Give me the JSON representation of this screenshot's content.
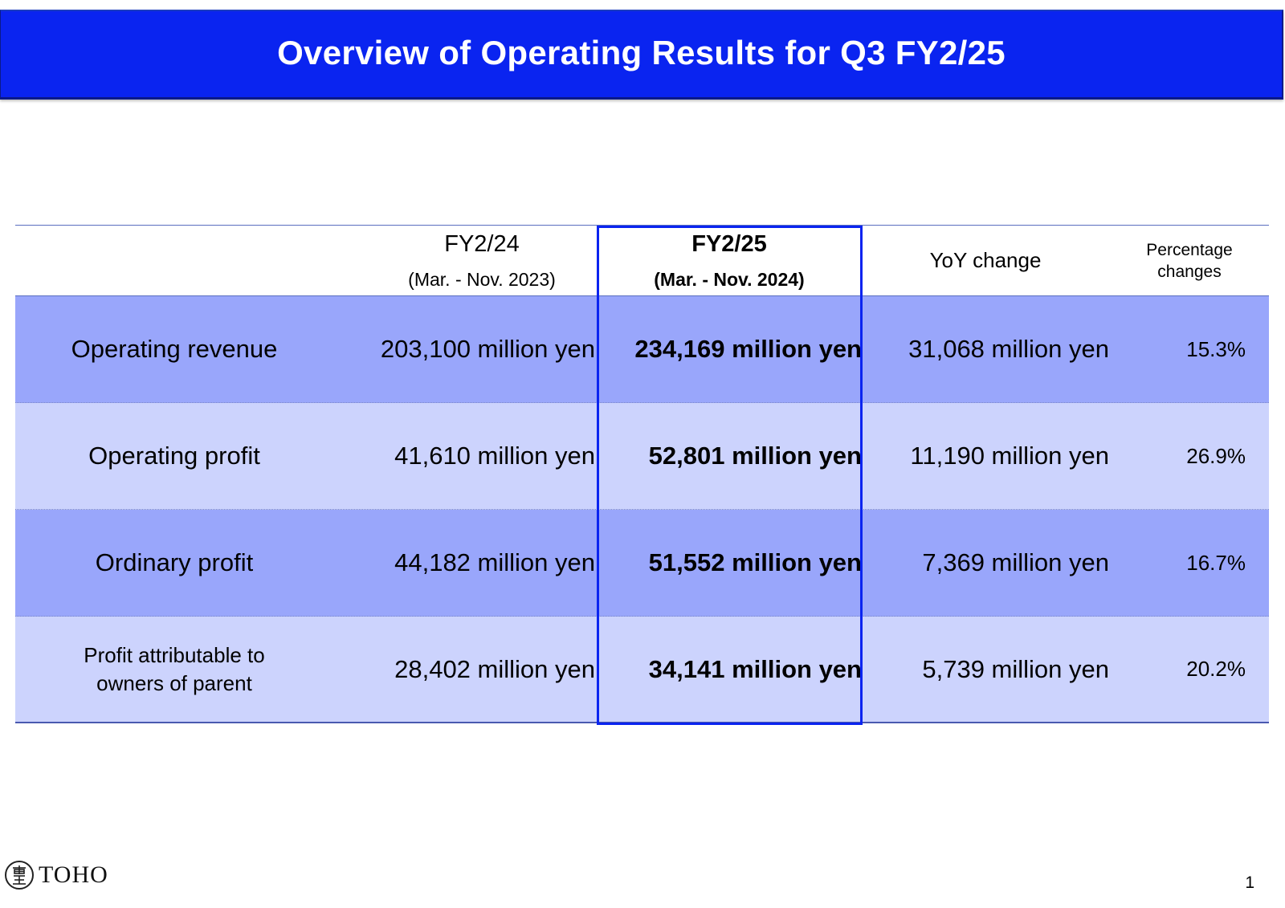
{
  "title": "Overview of Operating Results for Q3 FY2/25",
  "header": {
    "col1_main": "FY2/24",
    "col1_sub": "(Mar. - Nov. 2023)",
    "col2_main": "FY2/25",
    "col2_sub": "(Mar. - Nov. 2024)",
    "col3": "YoY change",
    "col4_line1": "Percentage",
    "col4_line2": "changes"
  },
  "rows": [
    {
      "label": "Operating revenue",
      "fy24": "203,100 million yen",
      "fy25": "234,169 million yen",
      "yoy": "31,068 million yen",
      "pct": "15.3%"
    },
    {
      "label": "Operating profit",
      "fy24": "41,610 million yen",
      "fy25": "52,801 million yen",
      "yoy": "11,190 million yen",
      "pct": "26.9%"
    },
    {
      "label": "Ordinary profit",
      "fy24": "44,182 million yen",
      "fy25": "51,552 million yen",
      "yoy": "7,369 million yen",
      "pct": "16.7%"
    },
    {
      "label_line1": "Profit attributable to",
      "label_line2": "owners of parent",
      "fy24": "28,402 million yen",
      "fy25": "34,141 million yen",
      "yoy": "5,739 million yen",
      "pct": "20.2%"
    }
  ],
  "logo": {
    "seal_text": "東宝",
    "text": "TOHO"
  },
  "page_number": "1",
  "colors": {
    "title_bar": "#0a24f0",
    "row_dark": "#99a6fb",
    "row_light": "#ccd3fd",
    "highlight_border": "#0a24f0"
  }
}
